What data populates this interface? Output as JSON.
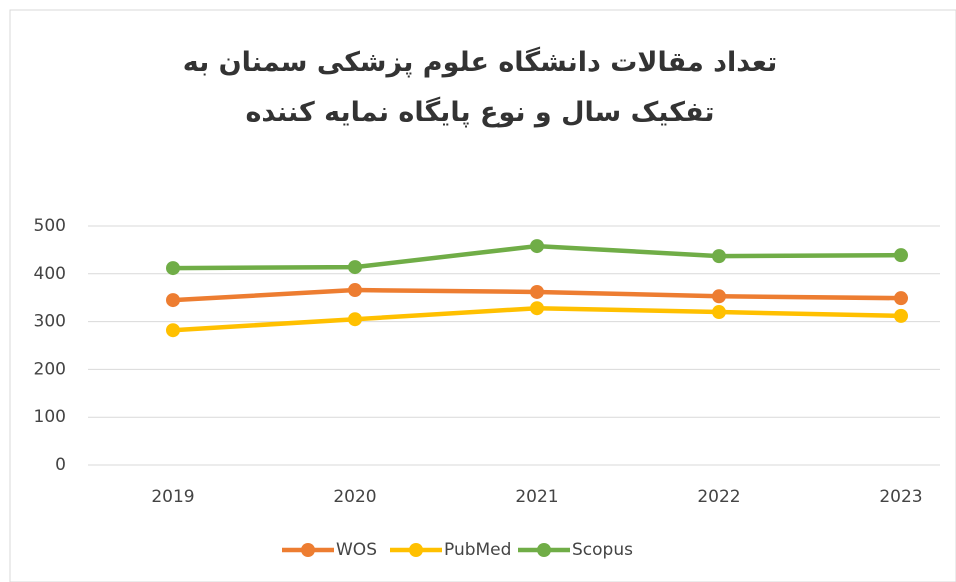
{
  "chart_data": {
    "type": "line",
    "title": "تعداد مقالات دانشگاه علوم پزشکی سمنان به تفکیک سال و نوع پایگاه نمایه کننده",
    "categories": [
      "2019",
      "2020",
      "2021",
      "2022",
      "2023"
    ],
    "series": [
      {
        "name": "WOS",
        "color": "#ed7d31",
        "values": [
          345,
          366,
          362,
          353,
          349
        ]
      },
      {
        "name": "PubMed",
        "color": "#ffc000",
        "values": [
          282,
          305,
          328,
          320,
          312
        ]
      },
      {
        "name": "Scopus",
        "color": "#70ad47",
        "values": [
          412,
          414,
          458,
          437,
          439
        ]
      }
    ],
    "ylim": [
      0,
      500
    ],
    "yticks": [
      0,
      100,
      200,
      300,
      400,
      500
    ],
    "grid": true,
    "legend": "bottom"
  }
}
